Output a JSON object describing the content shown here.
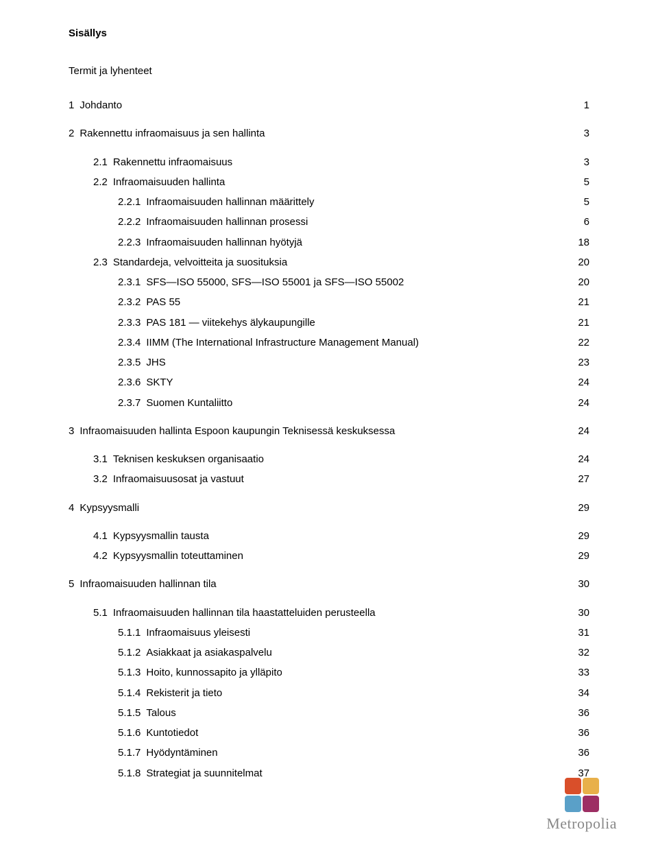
{
  "title": "Sisällys",
  "subtitle": "Termit ja lyhenteet",
  "entries": [
    {
      "level": 0,
      "num": "1",
      "label": "Johdanto",
      "page": "1",
      "gap": false
    },
    {
      "level": 0,
      "num": "2",
      "label": "Rakennettu infraomaisuus ja sen hallinta",
      "page": "3",
      "gap": true
    },
    {
      "level": 1,
      "num": "2.1",
      "label": "Rakennettu infraomaisuus",
      "page": "3",
      "gap": true
    },
    {
      "level": 1,
      "num": "2.2",
      "label": "Infraomaisuuden hallinta",
      "page": "5",
      "gap": false
    },
    {
      "level": 2,
      "num": "2.2.1",
      "label": "Infraomaisuuden hallinnan määrittely",
      "page": "5",
      "gap": false
    },
    {
      "level": 2,
      "num": "2.2.2",
      "label": "Infraomaisuuden hallinnan prosessi",
      "page": "6",
      "gap": false
    },
    {
      "level": 2,
      "num": "2.2.3",
      "label": "Infraomaisuuden hallinnan hyötyjä",
      "page": "18",
      "gap": false
    },
    {
      "level": 1,
      "num": "2.3",
      "label": "Standardeja, velvoitteita ja suosituksia",
      "page": "20",
      "gap": false
    },
    {
      "level": 2,
      "num": "2.3.1",
      "label": "SFS—ISO 55000, SFS—ISO 55001 ja SFS—ISO 55002",
      "page": "20",
      "gap": false
    },
    {
      "level": 2,
      "num": "2.3.2",
      "label": "PAS 55",
      "page": "21",
      "gap": false
    },
    {
      "level": 2,
      "num": "2.3.3",
      "label": "PAS 181 — viitekehys älykaupungille",
      "page": "21",
      "gap": false
    },
    {
      "level": 2,
      "num": "2.3.4",
      "label": "IIMM (The International Infrastructure Management Manual)",
      "page": "22",
      "gap": false
    },
    {
      "level": 2,
      "num": "2.3.5",
      "label": "JHS",
      "page": "23",
      "gap": false
    },
    {
      "level": 2,
      "num": "2.3.6",
      "label": "SKTY",
      "page": "24",
      "gap": false
    },
    {
      "level": 2,
      "num": "2.3.7",
      "label": "Suomen Kuntaliitto",
      "page": "24",
      "gap": false
    },
    {
      "level": 0,
      "num": "3",
      "label": "Infraomaisuuden hallinta Espoon kaupungin Teknisessä keskuksessa",
      "page": "24",
      "gap": true
    },
    {
      "level": 1,
      "num": "3.1",
      "label": "Teknisen keskuksen organisaatio",
      "page": "24",
      "gap": true
    },
    {
      "level": 1,
      "num": "3.2",
      "label": "Infraomaisuusosat ja vastuut",
      "page": "27",
      "gap": false
    },
    {
      "level": 0,
      "num": "4",
      "label": "Kypsyysmalli",
      "page": "29",
      "gap": true
    },
    {
      "level": 1,
      "num": "4.1",
      "label": "Kypsyysmallin tausta",
      "page": "29",
      "gap": true
    },
    {
      "level": 1,
      "num": "4.2",
      "label": "Kypsyysmallin toteuttaminen",
      "page": "29",
      "gap": false
    },
    {
      "level": 0,
      "num": "5",
      "label": "Infraomaisuuden hallinnan tila",
      "page": "30",
      "gap": true
    },
    {
      "level": 1,
      "num": "5.1",
      "label": "Infraomaisuuden hallinnan tila haastatteluiden perusteella",
      "page": "30",
      "gap": true
    },
    {
      "level": 2,
      "num": "5.1.1",
      "label": "Infraomaisuus yleisesti",
      "page": "31",
      "gap": false
    },
    {
      "level": 2,
      "num": "5.1.2",
      "label": "Asiakkaat ja asiakaspalvelu",
      "page": "32",
      "gap": false
    },
    {
      "level": 2,
      "num": "5.1.3",
      "label": "Hoito, kunnossapito ja ylläpito",
      "page": "33",
      "gap": false
    },
    {
      "level": 2,
      "num": "5.1.4",
      "label": "Rekisterit ja tieto",
      "page": "34",
      "gap": false
    },
    {
      "level": 2,
      "num": "5.1.5",
      "label": "Talous",
      "page": "36",
      "gap": false
    },
    {
      "level": 2,
      "num": "5.1.6",
      "label": "Kuntotiedot",
      "page": "36",
      "gap": false
    },
    {
      "level": 2,
      "num": "5.1.7",
      "label": "Hyödyntäminen",
      "page": "36",
      "gap": false
    },
    {
      "level": 2,
      "num": "5.1.8",
      "label": "Strategiat ja suunnitelmat",
      "page": "37",
      "gap": false
    }
  ],
  "logo": {
    "text": "Metropolia",
    "square_colors": [
      "#d94f2a",
      "#e8b04a",
      "#5aa0c8",
      "#9d2e63"
    ],
    "text_color": "#888888"
  }
}
